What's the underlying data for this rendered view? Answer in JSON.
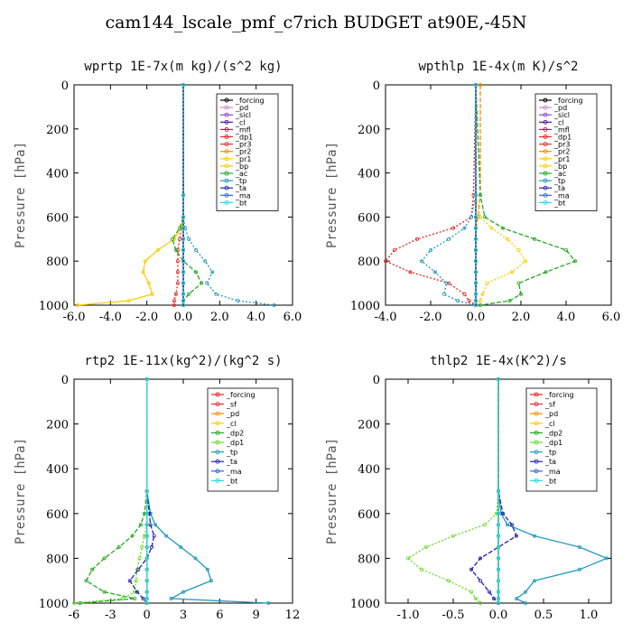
{
  "title": "cam144_lscale_pmf_c7rich  BUDGET at90E,-45N",
  "chart_data": [
    {
      "type": "line",
      "title": "wprtp  1E-7x(m kg)/(s^2 kg)",
      "ylabel": "Pressure [hPa]",
      "xlim": [
        -6,
        6
      ],
      "ylim": [
        1000,
        0
      ],
      "xticks": [
        -6,
        -4,
        -2,
        0,
        2,
        4,
        6
      ],
      "xtick_labels": [
        "-6.0",
        "-4.0",
        "-2.0",
        "0.0",
        "2.0",
        "4.0",
        "6.0"
      ],
      "yticks": [
        0,
        200,
        400,
        600,
        800,
        1000
      ],
      "ytick_labels": [
        "0",
        "200",
        "400",
        "600",
        "800",
        "1000"
      ],
      "legend_position": "top-right",
      "y": [
        0,
        500,
        600,
        650,
        700,
        750,
        800,
        850,
        900,
        950,
        980,
        1000
      ],
      "series": [
        {
          "name": "_forcing",
          "color": "#000000",
          "values": [
            0,
            0,
            0,
            0,
            0,
            0,
            0,
            0,
            0,
            0,
            0,
            0
          ]
        },
        {
          "name": "_pd",
          "color": "#cc88cc",
          "values": [
            0,
            0,
            0,
            0,
            0,
            0,
            0,
            0,
            0,
            0,
            0,
            0
          ]
        },
        {
          "name": "_sicl",
          "color": "#8844cc",
          "values": [
            0,
            0,
            0,
            0,
            0,
            0,
            0,
            0,
            0,
            0,
            0,
            0
          ]
        },
        {
          "name": "_cl",
          "color": "#551199",
          "values": [
            0,
            0,
            0,
            0,
            0,
            0,
            0,
            0,
            0,
            0,
            0,
            0
          ]
        },
        {
          "name": "_mfl",
          "color": "#aa2255",
          "values": [
            0,
            0,
            0,
            0,
            0,
            0,
            0,
            0,
            0,
            0,
            0,
            0
          ]
        },
        {
          "name": "_dp1",
          "color": "#ee2222",
          "values": [
            0,
            0,
            0,
            -0.1,
            -0.2,
            -0.3,
            -0.3,
            -0.3,
            -0.3,
            -0.4,
            -0.5,
            -0.5
          ]
        },
        {
          "name": "_pr3",
          "color": "#dd3333",
          "values": [
            0,
            0,
            0,
            0,
            0,
            0,
            0,
            0,
            0,
            0,
            0,
            0
          ]
        },
        {
          "name": "_pr2",
          "color": "#ff8800",
          "values": [
            0,
            0,
            0,
            0,
            0,
            0,
            0,
            0,
            0,
            0,
            0,
            0
          ]
        },
        {
          "name": "_pr1",
          "color": "#ffcc00",
          "values": [
            0,
            0,
            0,
            0,
            0,
            0,
            0,
            0,
            0,
            0,
            0,
            0
          ]
        },
        {
          "name": "_bp",
          "color": "#ffcc00",
          "values": [
            0,
            0,
            0,
            -0.1,
            -0.5,
            -1.4,
            -2.1,
            -2.2,
            -1.9,
            -1.7,
            -3.0,
            -5.8
          ]
        },
        {
          "name": "_ac",
          "color": "#22aa22",
          "values": [
            0,
            0,
            0,
            -0.2,
            -0.6,
            -0.4,
            0,
            0.7,
            1.0,
            0.3,
            0,
            0
          ]
        },
        {
          "name": "_tp",
          "color": "#2299bb",
          "values": [
            0,
            0,
            0,
            0.1,
            0.3,
            0.7,
            1.2,
            1.6,
            1.3,
            1.8,
            3.0,
            5.0
          ]
        },
        {
          "name": "_ta",
          "color": "#2222aa",
          "values": [
            0,
            0,
            0,
            0,
            0,
            0,
            0,
            0,
            0,
            0,
            0,
            0
          ]
        },
        {
          "name": "_ma",
          "color": "#3366cc",
          "values": [
            0,
            0,
            0,
            0,
            0,
            0,
            0,
            0,
            0,
            0,
            0,
            0
          ]
        },
        {
          "name": "_bt",
          "color": "#22dddd",
          "values": [
            0,
            0,
            0,
            0,
            0,
            0,
            0,
            0,
            0,
            0,
            0,
            0
          ]
        }
      ]
    },
    {
      "type": "line",
      "title": "wpthlp  1E-4x(m K)/s^2",
      "ylabel": "Pressure [hPa]",
      "xlim": [
        -4,
        6
      ],
      "ylim": [
        1000,
        0
      ],
      "xticks": [
        -4,
        -2,
        0,
        2,
        4,
        6
      ],
      "xtick_labels": [
        "-4.0",
        "-2.0",
        "0.0",
        "2.0",
        "4.0",
        "6.0"
      ],
      "yticks": [
        0,
        200,
        400,
        600,
        800,
        1000
      ],
      "ytick_labels": [
        "0",
        "200",
        "400",
        "600",
        "800",
        "1000"
      ],
      "legend_position": "top-right",
      "y": [
        0,
        500,
        600,
        650,
        700,
        750,
        800,
        850,
        900,
        950,
        980,
        1000
      ],
      "series": [
        {
          "name": "_forcing",
          "color": "#000000",
          "values": [
            0,
            0,
            0,
            0,
            0,
            0,
            0,
            0,
            0,
            0,
            0,
            0
          ]
        },
        {
          "name": "_pd",
          "color": "#cc88cc",
          "values": [
            0,
            0,
            0,
            0,
            0,
            0,
            0,
            0,
            0,
            0,
            0,
            0
          ]
        },
        {
          "name": "_sicl",
          "color": "#8844cc",
          "values": [
            0,
            0,
            0,
            0,
            0,
            0,
            0,
            0,
            0,
            0,
            0,
            0
          ]
        },
        {
          "name": "_cl",
          "color": "#551199",
          "values": [
            0,
            0,
            0,
            0,
            0,
            0,
            0,
            0,
            0,
            0,
            0,
            0
          ]
        },
        {
          "name": "_mfl",
          "color": "#aa2255",
          "values": [
            0,
            0,
            0,
            0,
            0,
            0,
            0,
            0,
            0,
            0,
            0,
            0
          ]
        },
        {
          "name": "_dp1",
          "color": "#ee2222",
          "values": [
            0,
            -0.1,
            -0.2,
            -1.0,
            -2.6,
            -3.6,
            -4.0,
            -2.9,
            -1.2,
            -0.5,
            -0.3,
            0
          ]
        },
        {
          "name": "_pr3",
          "color": "#dd3333",
          "values": [
            0,
            0,
            0,
            0,
            0,
            0,
            0,
            0,
            0,
            0,
            0,
            0
          ]
        },
        {
          "name": "_pr2",
          "color": "#ff8800",
          "values": [
            0.2,
            0.2,
            0.1,
            0,
            0,
            0,
            0,
            0,
            0,
            0,
            0,
            0
          ]
        },
        {
          "name": "_pr1",
          "color": "#ffcc00",
          "values": [
            0,
            0,
            0.2,
            0.7,
            1.4,
            1.9,
            2.2,
            1.6,
            0.5,
            0.3,
            0.2,
            0
          ]
        },
        {
          "name": "_bp",
          "color": "#ffcc00",
          "values": [
            0,
            0,
            0,
            0,
            0,
            0,
            0,
            0,
            0,
            0,
            0,
            0
          ]
        },
        {
          "name": "_ac",
          "color": "#22aa22",
          "values": [
            0,
            0.2,
            0.4,
            1.2,
            2.6,
            4.0,
            4.4,
            3.1,
            1.9,
            2.0,
            1.5,
            0.2
          ]
        },
        {
          "name": "_tp",
          "color": "#2299bb",
          "values": [
            0,
            0,
            -0.2,
            -0.5,
            -1.2,
            -2.0,
            -2.4,
            -1.8,
            -1.3,
            -1.4,
            -0.8,
            0
          ]
        },
        {
          "name": "_ta",
          "color": "#2222aa",
          "values": [
            0,
            0,
            0,
            0,
            0,
            0,
            0,
            0,
            0,
            0,
            0,
            0
          ]
        },
        {
          "name": "_ma",
          "color": "#3366cc",
          "values": [
            0,
            0,
            0,
            0,
            0,
            0,
            0,
            0,
            0,
            0,
            0,
            0
          ]
        },
        {
          "name": "_bt",
          "color": "#22dddd",
          "values": [
            0,
            0,
            0,
            0,
            0,
            0,
            0,
            0,
            0,
            0,
            0,
            0
          ]
        }
      ]
    },
    {
      "type": "line",
      "title": "rtp2  1E-11x(kg^2)/(kg^2 s)",
      "ylabel": "Pressure [hPa]",
      "xlim": [
        -6,
        12
      ],
      "ylim": [
        1000,
        0
      ],
      "xticks": [
        -6,
        -3,
        0,
        3,
        6,
        9,
        12
      ],
      "xtick_labels": [
        "-6",
        "-3",
        "0",
        "3",
        "6",
        "9",
        "12"
      ],
      "yticks": [
        0,
        200,
        400,
        600,
        800,
        1000
      ],
      "ytick_labels": [
        "0",
        "200",
        "400",
        "600",
        "800",
        "1000"
      ],
      "legend_position": "top-right",
      "y": [
        0,
        500,
        600,
        650,
        700,
        750,
        800,
        850,
        900,
        950,
        980,
        1000
      ],
      "series": [
        {
          "name": "_forcing",
          "color": "#ee2222",
          "values": [
            0,
            0,
            0,
            0,
            0,
            0,
            0,
            0,
            0,
            0,
            0,
            0
          ]
        },
        {
          "name": "_sf",
          "color": "#dd3333",
          "values": [
            0,
            0,
            0,
            0,
            0,
            0,
            0,
            0,
            0,
            0,
            0,
            0
          ]
        },
        {
          "name": "_pd",
          "color": "#ff8800",
          "values": [
            0,
            0,
            0,
            0,
            0,
            0,
            0,
            0,
            0,
            0,
            0,
            0
          ]
        },
        {
          "name": "_cl",
          "color": "#ffcc00",
          "values": [
            0,
            0,
            0,
            0,
            0,
            0,
            0,
            0,
            0,
            0,
            0,
            0
          ]
        },
        {
          "name": "_dp2",
          "color": "#22aa22",
          "values": [
            0,
            0,
            -0.2,
            -0.5,
            -1.2,
            -2.3,
            -3.5,
            -4.5,
            -5.0,
            -3.5,
            -1.0,
            -5.5
          ]
        },
        {
          "name": "_dp1",
          "color": "#66dd22",
          "values": [
            0,
            0,
            0,
            0,
            -0.2,
            -0.4,
            -0.6,
            -0.8,
            -0.9,
            -1.0,
            -2.0,
            -6.0
          ]
        },
        {
          "name": "_tp",
          "color": "#2299bb",
          "values": [
            0,
            0,
            0.3,
            0.7,
            1.6,
            2.8,
            4.0,
            5.0,
            5.3,
            3.0,
            2.0,
            10.0
          ]
        },
        {
          "name": "_ta",
          "color": "#2222aa",
          "values": [
            0,
            0,
            0.2,
            0.3,
            0.6,
            0.4,
            0,
            -0.7,
            -1.4,
            -0.8,
            -0.3,
            0
          ]
        },
        {
          "name": "_ma",
          "color": "#3366cc",
          "values": [
            0,
            0,
            0,
            0,
            0,
            0,
            0,
            0,
            0,
            0,
            0,
            0
          ]
        },
        {
          "name": "_bt",
          "color": "#22dddd",
          "values": [
            0,
            0,
            0,
            0,
            0,
            0,
            0,
            0,
            0,
            0,
            0,
            0
          ]
        }
      ]
    },
    {
      "type": "line",
      "title": "thlp2  1E-4x(K^2)/s",
      "ylabel": "Pressure [hPa]",
      "xlim": [
        -1.25,
        1.25
      ],
      "ylim": [
        1000,
        0
      ],
      "xticks": [
        -1.0,
        -0.5,
        0,
        0.5,
        1.0
      ],
      "xtick_labels": [
        "-1.0",
        "-0.5",
        "0.0",
        "0.5",
        "1.0"
      ],
      "yticks": [
        0,
        200,
        400,
        600,
        800,
        1000
      ],
      "ytick_labels": [
        "0",
        "200",
        "400",
        "600",
        "800",
        "1000"
      ],
      "legend_position": "top-right",
      "y": [
        0,
        500,
        600,
        650,
        700,
        750,
        800,
        850,
        900,
        950,
        980,
        1000
      ],
      "series": [
        {
          "name": "_forcing",
          "color": "#ee2222",
          "values": [
            0,
            0,
            0,
            0,
            0,
            0,
            0,
            0,
            0,
            0,
            0,
            0
          ]
        },
        {
          "name": "_sf",
          "color": "#dd3333",
          "values": [
            0,
            0,
            0,
            0,
            0,
            0,
            0,
            0,
            0,
            0,
            0,
            0
          ]
        },
        {
          "name": "_pd",
          "color": "#ff8800",
          "values": [
            0,
            0,
            0,
            0,
            0,
            0,
            0,
            0,
            0,
            0,
            0,
            0
          ]
        },
        {
          "name": "_cl",
          "color": "#ffcc00",
          "values": [
            0,
            0,
            0,
            0,
            0,
            0,
            0,
            0,
            0,
            0,
            0,
            0
          ]
        },
        {
          "name": "_dp2",
          "color": "#22aa22",
          "values": [
            0,
            0,
            0,
            0,
            0,
            0,
            0,
            0,
            0,
            0,
            0,
            0
          ]
        },
        {
          "name": "_dp1",
          "color": "#66dd22",
          "values": [
            0,
            0,
            -0.02,
            -0.15,
            -0.5,
            -0.8,
            -1.0,
            -0.85,
            -0.55,
            -0.3,
            -0.25,
            -0.2
          ]
        },
        {
          "name": "_tp",
          "color": "#2299bb",
          "values": [
            0,
            0,
            0.03,
            0.1,
            0.4,
            0.9,
            1.2,
            0.9,
            0.4,
            0.3,
            0.2,
            0.3
          ]
        },
        {
          "name": "_ta",
          "color": "#2222aa",
          "values": [
            0,
            0,
            0.05,
            0.15,
            0.2,
            0,
            -0.2,
            -0.3,
            -0.2,
            -0.1,
            -0.05,
            0
          ]
        },
        {
          "name": "_ma",
          "color": "#3366cc",
          "values": [
            0,
            0,
            0,
            0,
            0,
            0,
            0,
            0,
            0,
            0,
            0,
            0
          ]
        },
        {
          "name": "_bt",
          "color": "#22dddd",
          "values": [
            0,
            0,
            0,
            0,
            0,
            0,
            0,
            0,
            0,
            0,
            0,
            0
          ]
        }
      ]
    }
  ]
}
